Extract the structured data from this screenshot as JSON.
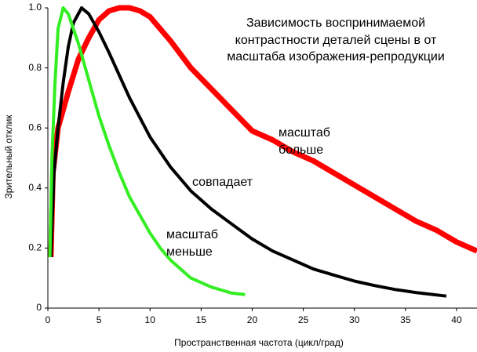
{
  "chart_data": {
    "type": "line",
    "title": [
      "Зависимость воспринимаемой",
      "контрастности деталей сцены в от",
      "масштаба изображения-репродукции"
    ],
    "xlabel": "Пространственная частота (цикл/град)",
    "ylabel": "Зрительный отклик",
    "annotations": [
      [
        "масштаб",
        "больше"
      ],
      [
        "совпадает"
      ],
      [
        "масштаб",
        "меньше"
      ]
    ],
    "xlim": [
      0,
      42
    ],
    "ylim": [
      0,
      1
    ],
    "xticks": [
      0,
      5,
      10,
      15,
      20,
      25,
      30,
      35,
      40
    ],
    "yticks": [
      0,
      0.2,
      0.4,
      0.6,
      0.8,
      {
        "value": 1,
        "label": "1.0"
      }
    ],
    "grid": false,
    "series": [
      {
        "color": "#ff0000",
        "width": 7,
        "x": [
          0.3,
          0.5,
          1,
          2,
          3,
          4,
          5,
          6,
          7,
          8,
          9,
          10,
          12,
          14,
          16,
          18,
          20,
          22,
          24,
          26,
          28,
          30,
          32,
          34,
          36,
          38,
          40,
          42
        ],
        "values": [
          0.17,
          0.45,
          0.6,
          0.72,
          0.83,
          0.9,
          0.96,
          0.99,
          1.0,
          1.0,
          0.99,
          0.97,
          0.89,
          0.8,
          0.73,
          0.66,
          0.59,
          0.56,
          0.52,
          0.49,
          0.45,
          0.41,
          0.37,
          0.33,
          0.29,
          0.26,
          0.22,
          0.19
        ]
      },
      {
        "color": "#000000",
        "width": 4,
        "x": [
          0.3,
          0.6,
          1,
          1.5,
          2,
          2.5,
          3.3,
          4,
          5,
          6,
          8,
          10,
          12,
          14,
          16,
          18,
          20,
          22,
          24,
          26,
          28,
          30,
          32,
          34,
          36,
          39
        ],
        "values": [
          0.17,
          0.45,
          0.6,
          0.75,
          0.87,
          0.95,
          1.0,
          0.98,
          0.92,
          0.85,
          0.7,
          0.57,
          0.47,
          0.39,
          0.33,
          0.28,
          0.23,
          0.19,
          0.16,
          0.13,
          0.11,
          0.09,
          0.075,
          0.062,
          0.052,
          0.04
        ]
      },
      {
        "color": "#33ee22",
        "width": 4,
        "x": [
          0.2,
          0.4,
          0.7,
          1,
          1.5,
          2,
          3,
          4,
          5,
          6,
          7,
          8,
          9,
          10,
          11,
          12,
          13,
          14,
          15,
          16,
          17,
          18,
          19.3
        ],
        "values": [
          0.17,
          0.5,
          0.75,
          0.93,
          1.0,
          0.98,
          0.88,
          0.76,
          0.64,
          0.54,
          0.45,
          0.37,
          0.31,
          0.25,
          0.2,
          0.16,
          0.13,
          0.1,
          0.085,
          0.07,
          0.06,
          0.05,
          0.045
        ]
      }
    ]
  }
}
